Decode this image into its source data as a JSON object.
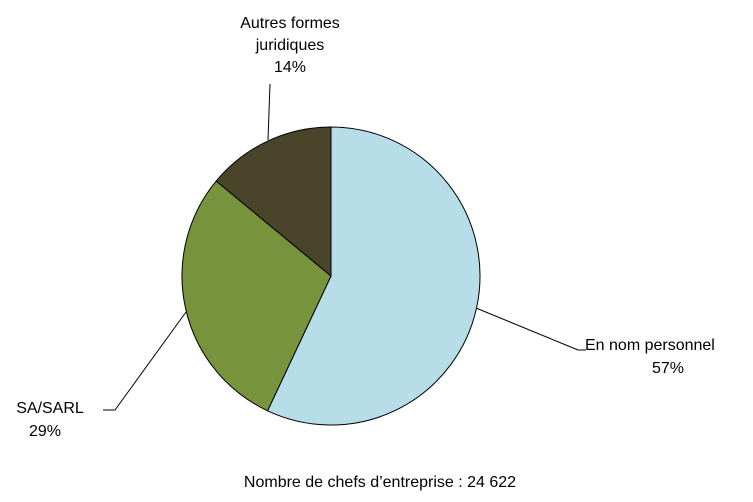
{
  "chart_data": {
    "type": "pie",
    "categories": [
      "En nom personnel",
      "SA/SARL",
      "Autres formes juridiques"
    ],
    "values": [
      57,
      29,
      14
    ],
    "value_labels": [
      "57%",
      "29%",
      "14%"
    ],
    "colors": [
      "#b7dde8",
      "#77933c",
      "#4a452a"
    ],
    "note": "Nombre de chefs d’entreprise : 24 622"
  }
}
